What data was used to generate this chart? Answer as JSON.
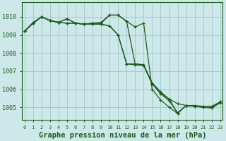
{
  "background_color": "#cce8e8",
  "grid_color": "#a8cccc",
  "line_color": "#1a5c1a",
  "xlabel": "Graphe pression niveau de la mer (hPa)",
  "xlabel_fontsize": 7.5,
  "ylim": [
    1004.3,
    1010.8
  ],
  "xlim": [
    -0.3,
    23.3
  ],
  "yticks": [
    1005,
    1006,
    1007,
    1008,
    1009,
    1010
  ],
  "xticks": [
    0,
    1,
    2,
    3,
    4,
    5,
    6,
    7,
    8,
    9,
    10,
    11,
    12,
    13,
    14,
    15,
    16,
    17,
    18,
    19,
    20,
    21,
    22,
    23
  ],
  "series": [
    [
      1009.2,
      1009.65,
      1010.0,
      1009.8,
      1009.7,
      1009.65,
      1009.65,
      1009.6,
      1009.6,
      1009.6,
      1009.5,
      1009.0,
      1007.4,
      1007.4,
      1007.35,
      1006.3,
      1005.8,
      1005.45,
      1004.65,
      1005.1,
      1005.1,
      1005.05,
      1005.05,
      1005.3
    ],
    [
      1009.2,
      1009.65,
      1010.0,
      1009.8,
      1009.7,
      1009.65,
      1009.65,
      1009.6,
      1009.6,
      1009.6,
      1009.5,
      1009.0,
      1007.4,
      1007.35,
      1007.3,
      1006.3,
      1005.75,
      1005.35,
      1004.7,
      1005.1,
      1005.05,
      1005.0,
      1004.95,
      1005.25
    ],
    [
      1009.2,
      1009.7,
      1010.0,
      1009.8,
      1009.7,
      1009.9,
      1009.65,
      1009.6,
      1009.65,
      1009.65,
      1010.1,
      1010.1,
      1009.75,
      1009.45,
      1009.65,
      1006.0,
      1005.4,
      1005.0,
      1004.65,
      null,
      null,
      null,
      null,
      null
    ],
    [
      1009.2,
      1009.65,
      1010.0,
      1009.8,
      1009.7,
      1009.9,
      1009.65,
      1009.6,
      1009.65,
      1009.7,
      1010.1,
      1010.1,
      1009.75,
      1007.4,
      1007.35,
      1006.35,
      1005.85,
      1005.45,
      1005.2,
      1005.1,
      1005.05,
      1005.0,
      1005.0,
      1005.3
    ]
  ]
}
